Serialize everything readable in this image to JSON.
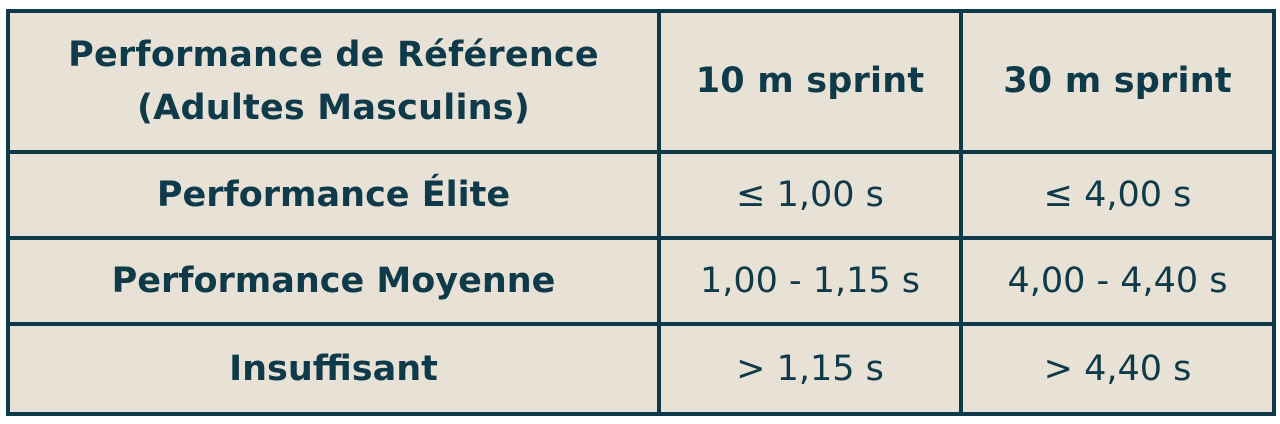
{
  "table": {
    "headers": {
      "col1_line1": "Performance de Référence",
      "col1_line2": "(Adultes Masculins)",
      "col2": "10 m sprint",
      "col3": "30 m sprint"
    },
    "rows": [
      {
        "label": "Performance Élite",
        "sprint10": "≤ 1,00 s",
        "sprint30": "≤ 4,00 s"
      },
      {
        "label": "Performance Moyenne",
        "sprint10": "1,00 - 1,15 s",
        "sprint30": "4,00 - 4,40 s"
      },
      {
        "label": "Insuffisant",
        "sprint10": "> 1,15 s",
        "sprint30": "> 4,40 s"
      }
    ]
  }
}
